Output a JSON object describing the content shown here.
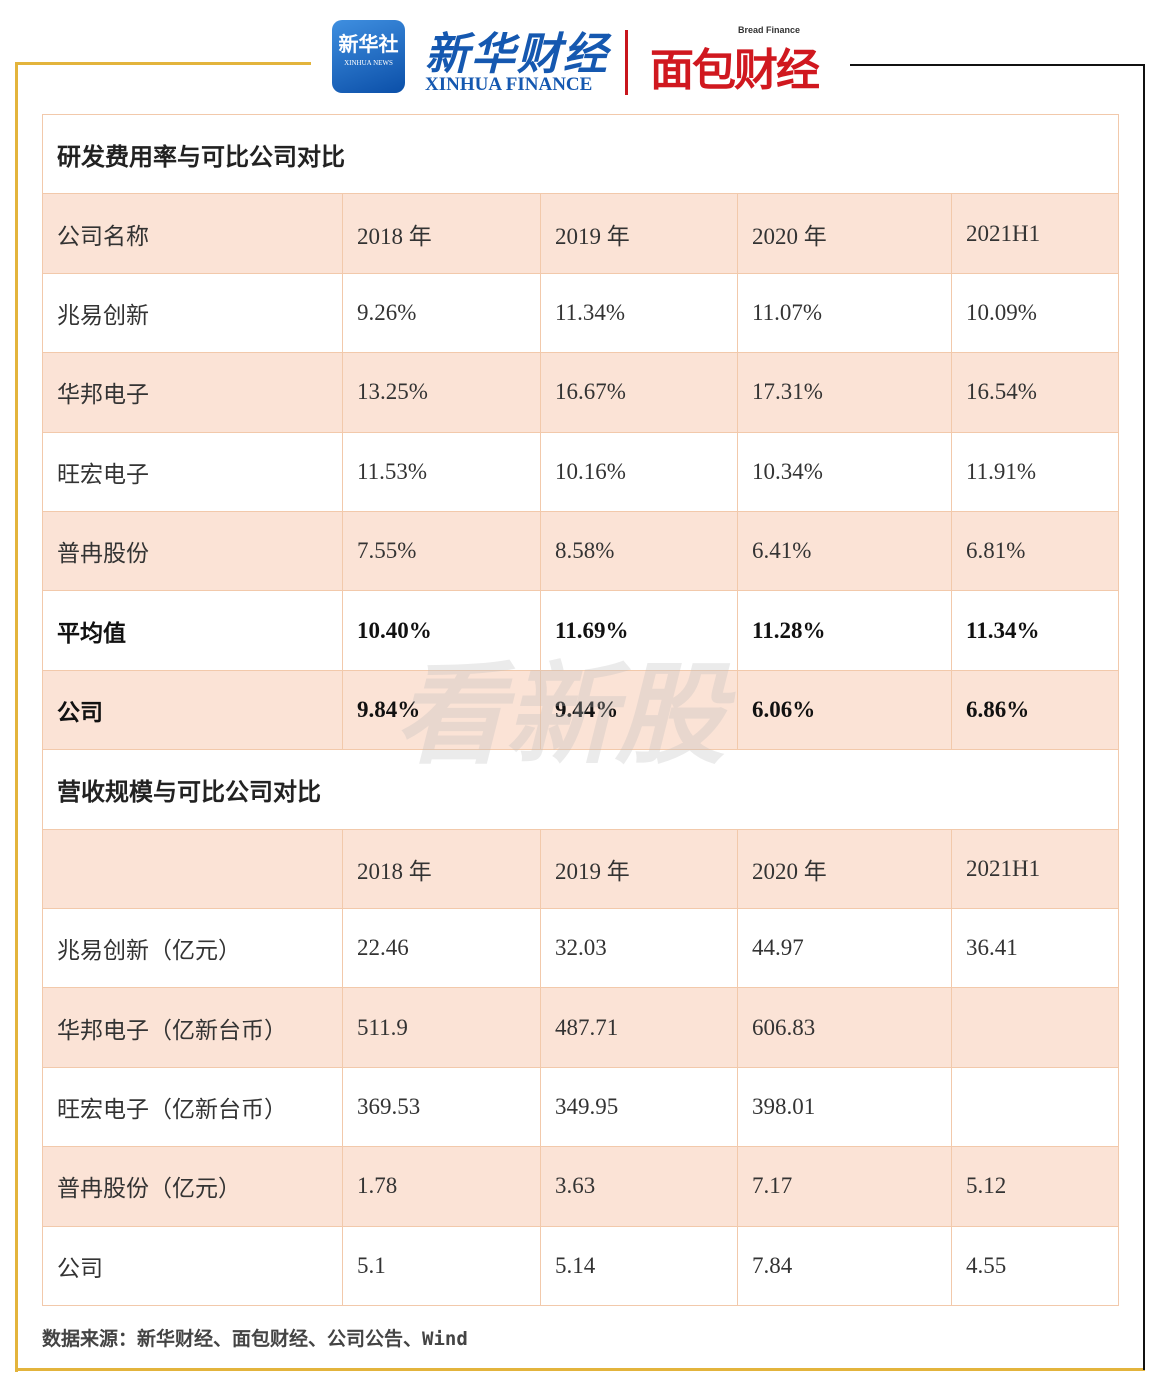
{
  "header": {
    "xinhua_news": "新华社",
    "xinhua_news_en": "XINHUA NEWS",
    "xinhua_finance": "新华财经",
    "xinhua_finance_en": "XINHUA FINANCE",
    "bread_finance_en": "Bread Finance",
    "bread_finance": "面包财经"
  },
  "tables": [
    {
      "title": "研发费用率与可比公司对比",
      "columns": [
        "公司名称",
        "2018 年",
        "2019 年",
        "2020 年",
        "2021H1"
      ],
      "rows": [
        {
          "name": "兆易创新",
          "values": [
            "9.26%",
            "11.34%",
            "11.07%",
            "10.09%"
          ]
        },
        {
          "name": "华邦电子",
          "values": [
            "13.25%",
            "16.67%",
            "17.31%",
            "16.54%"
          ]
        },
        {
          "name": "旺宏电子",
          "values": [
            "11.53%",
            "10.16%",
            "10.34%",
            "11.91%"
          ]
        },
        {
          "name": "普冉股份",
          "values": [
            "7.55%",
            "8.58%",
            "6.41%",
            "6.81%"
          ]
        },
        {
          "name": "平均值",
          "values": [
            "10.40%",
            "11.69%",
            "11.28%",
            "11.34%"
          ],
          "bold": true
        },
        {
          "name": "公司",
          "values": [
            "9.84%",
            "9.44%",
            "6.06%",
            "6.86%"
          ],
          "bold": true
        }
      ]
    },
    {
      "title": "营收规模与可比公司对比",
      "columns": [
        "2018 年",
        "2019 年",
        "2020 年",
        "2021H1"
      ],
      "rows": [
        {
          "name": "兆易创新（亿元）",
          "values": [
            "22.46",
            "32.03",
            "44.97",
            "36.41"
          ]
        },
        {
          "name": "华邦电子（亿新台币）",
          "values": [
            "511.9",
            "487.71",
            "606.83"
          ]
        },
        {
          "name": "旺宏电子（亿新台币）",
          "values": [
            "369.53",
            "349.95",
            "398.01"
          ]
        },
        {
          "name": "普冉股份（亿元）",
          "values": [
            "1.78",
            "3.63",
            "7.17",
            "5.12"
          ]
        },
        {
          "name": "公司",
          "values": [
            "5.1",
            "5.14",
            "7.84",
            "4.55"
          ]
        }
      ]
    }
  ],
  "watermark": "看新股",
  "source": "数据来源：新华财经、面包财经、公司公告、Wind"
}
